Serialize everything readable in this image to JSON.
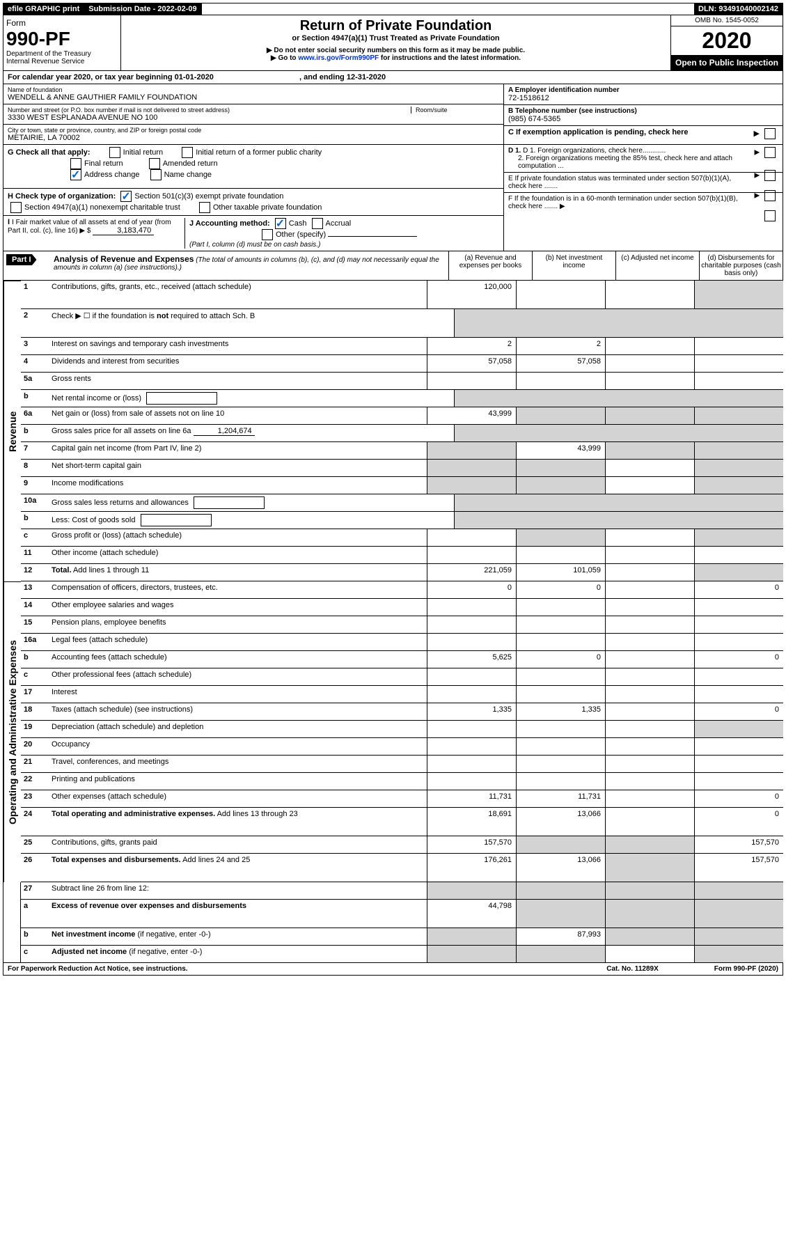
{
  "topbar": {
    "efile": "efile GRAPHIC print",
    "subdate_label": "Submission Date - ",
    "subdate": "2022-02-09",
    "dln_label": "DLN: ",
    "dln": "93491040002142"
  },
  "header": {
    "form_word": "Form",
    "form_num": "990-PF",
    "dept": "Department of the Treasury",
    "irs": "Internal Revenue Service",
    "title": "Return of Private Foundation",
    "subtitle": "or Section 4947(a)(1) Trust Treated as Private Foundation",
    "warn1": "▶ Do not enter social security numbers on this form as it may be made public.",
    "warn2_pre": "▶ Go to ",
    "warn2_link": "www.irs.gov/Form990PF",
    "warn2_post": " for instructions and the latest information.",
    "omb": "OMB No. 1545-0052",
    "year": "2020",
    "open": "Open to Public Inspection"
  },
  "calyear": {
    "pre": "For calendar year 2020, or tax year beginning ",
    "begin": "01-01-2020",
    "mid": " , and ending ",
    "end": "12-31-2020"
  },
  "info": {
    "name_label": "Name of foundation",
    "name": "WENDELL & ANNE GAUTHIER FAMILY FOUNDATION",
    "addr_label": "Number and street (or P.O. box number if mail is not delivered to street address)",
    "addr": "3330 WEST ESPLANADA AVENUE NO 100",
    "room_label": "Room/suite",
    "city_label": "City or town, state or province, country, and ZIP or foreign postal code",
    "city": "METAIRIE, LA  70002",
    "a_label": "A Employer identification number",
    "a_val": "72-1518612",
    "b_label": "B Telephone number (see instructions)",
    "b_val": "(985) 674-5365",
    "c_label": "C If exemption application is pending, check here"
  },
  "checks": {
    "g_label": "G Check all that apply:",
    "g_opts": [
      "Initial return",
      "Initial return of a former public charity",
      "Final return",
      "Amended return",
      "Address change",
      "Name change"
    ],
    "h_label": "H Check type of organization:",
    "h_opts": [
      "Section 501(c)(3) exempt private foundation",
      "Section 4947(a)(1) nonexempt charitable trust",
      "Other taxable private foundation"
    ],
    "i_label": "I Fair market value of all assets at end of year (from Part II, col. (c), line 16) ▶ $ ",
    "i_val": "3,183,470",
    "j_label": "J Accounting method:",
    "j_cash": "Cash",
    "j_accrual": "Accrual",
    "j_other": "Other (specify)",
    "j_note": "(Part I, column (d) must be on cash basis.)",
    "d1": "D 1. Foreign organizations, check here............",
    "d2": "2. Foreign organizations meeting the 85% test, check here and attach computation ...",
    "e": "E  If private foundation status was terminated under section 507(b)(1)(A), check here .......",
    "f": "F  If the foundation is in a 60-month termination under section 507(b)(1)(B), check here .......  ▶"
  },
  "part1": {
    "label": "Part I",
    "title": "Analysis of Revenue and Expenses",
    "note": " (The total of amounts in columns (b), (c), and (d) may not necessarily equal the amounts in column (a) (see instructions).)",
    "cols": {
      "a": "(a) Revenue and expenses per books",
      "b": "(b) Net investment income",
      "c": "(c) Adjusted net income",
      "d": "(d) Disbursements for charitable purposes (cash basis only)"
    }
  },
  "side": {
    "rev": "Revenue",
    "exp": "Operating and Administrative Expenses"
  },
  "rows": {
    "r1": {
      "n": "1",
      "d": "Contributions, gifts, grants, etc., received (attach schedule)",
      "a": "120,000",
      "dgrey": true
    },
    "r2": {
      "n": "2",
      "d": "Check ▶ ☐ if the foundation is <b>not</b> required to attach Sch. B",
      "nocol": true
    },
    "r3": {
      "n": "3",
      "d": "Interest on savings and temporary cash investments",
      "a": "2",
      "b": "2"
    },
    "r4": {
      "n": "4",
      "d": "Dividends and interest from securities",
      "a": "57,058",
      "b": "57,058"
    },
    "r5a": {
      "n": "5a",
      "d": "Gross rents"
    },
    "r5b": {
      "n": "b",
      "d": "Net rental income or (loss)",
      "inlinebox": true,
      "nocol": true
    },
    "r6a": {
      "n": "6a",
      "d": "Net gain or (loss) from sale of assets not on line 10",
      "a": "43,999",
      "bgrey": true,
      "cgrey": true,
      "dgrey": true
    },
    "r6b": {
      "n": "b",
      "d": "Gross sales price for all assets on line 6a",
      "inlinevalue": "1,204,674",
      "nocol": true
    },
    "r7": {
      "n": "7",
      "d": "Capital gain net income (from Part IV, line 2)",
      "b": "43,999",
      "agrey": true,
      "cgrey": true,
      "dgrey": true
    },
    "r8": {
      "n": "8",
      "d": "Net short-term capital gain",
      "agrey": true,
      "bgrey": true,
      "dgrey": true
    },
    "r9": {
      "n": "9",
      "d": "Income modifications",
      "agrey": true,
      "bgrey": true,
      "dgrey": true
    },
    "r10a": {
      "n": "10a",
      "d": "Gross sales less returns and allowances",
      "inlinebox": true,
      "nocol": true
    },
    "r10b": {
      "n": "b",
      "d": "Less: Cost of goods sold",
      "inlinebox": true,
      "nocol": true
    },
    "r10c": {
      "n": "c",
      "d": "Gross profit or (loss) (attach schedule)",
      "bgrey": true,
      "dgrey": true
    },
    "r11": {
      "n": "11",
      "d": "Other income (attach schedule)"
    },
    "r12": {
      "n": "12",
      "d": "<b>Total.</b> Add lines 1 through 11",
      "a": "221,059",
      "b": "101,059",
      "dgrey": true
    },
    "r13": {
      "n": "13",
      "d": "Compensation of officers, directors, trustees, etc.",
      "a": "0",
      "b": "0",
      "dd": "0"
    },
    "r14": {
      "n": "14",
      "d": "Other employee salaries and wages"
    },
    "r15": {
      "n": "15",
      "d": "Pension plans, employee benefits"
    },
    "r16a": {
      "n": "16a",
      "d": "Legal fees (attach schedule)"
    },
    "r16b": {
      "n": "b",
      "d": "Accounting fees (attach schedule)",
      "a": "5,625",
      "b": "0",
      "dd": "0"
    },
    "r16c": {
      "n": "c",
      "d": "Other professional fees (attach schedule)"
    },
    "r17": {
      "n": "17",
      "d": "Interest"
    },
    "r18": {
      "n": "18",
      "d": "Taxes (attach schedule) (see instructions)",
      "a": "1,335",
      "b": "1,335",
      "dd": "0"
    },
    "r19": {
      "n": "19",
      "d": "Depreciation (attach schedule) and depletion",
      "dgrey": true
    },
    "r20": {
      "n": "20",
      "d": "Occupancy"
    },
    "r21": {
      "n": "21",
      "d": "Travel, conferences, and meetings"
    },
    "r22": {
      "n": "22",
      "d": "Printing and publications"
    },
    "r23": {
      "n": "23",
      "d": "Other expenses (attach schedule)",
      "a": "11,731",
      "b": "11,731",
      "dd": "0"
    },
    "r24": {
      "n": "24",
      "d": "<b>Total operating and administrative expenses.</b> Add lines 13 through 23",
      "a": "18,691",
      "b": "13,066",
      "dd": "0"
    },
    "r25": {
      "n": "25",
      "d": "Contributions, gifts, grants paid",
      "a": "157,570",
      "bgrey": true,
      "cgrey": true,
      "dd": "157,570"
    },
    "r26": {
      "n": "26",
      "d": "<b>Total expenses and disbursements.</b> Add lines 24 and 25",
      "a": "176,261",
      "b": "13,066",
      "cgrey": true,
      "dd": "157,570"
    },
    "r27": {
      "n": "27",
      "d": "Subtract line 26 from line 12:",
      "agrey": true,
      "bgrey": true,
      "cgrey": true,
      "dgrey": true
    },
    "r27a": {
      "n": "a",
      "d": "<b>Excess of revenue over expenses and disbursements</b>",
      "a": "44,798",
      "bgrey": true,
      "cgrey": true,
      "dgrey": true
    },
    "r27b": {
      "n": "b",
      "d": "<b>Net investment income</b> (if negative, enter -0-)",
      "agrey": true,
      "b": "87,993",
      "cgrey": true,
      "dgrey": true
    },
    "r27c": {
      "n": "c",
      "d": "<b>Adjusted net income</b> (if negative, enter -0-)",
      "agrey": true,
      "bgrey": true,
      "dgrey": true
    }
  },
  "footer": {
    "left": "For Paperwork Reduction Act Notice, see instructions.",
    "mid": "Cat. No. 11289X",
    "right": "Form 990-PF (2020)"
  }
}
